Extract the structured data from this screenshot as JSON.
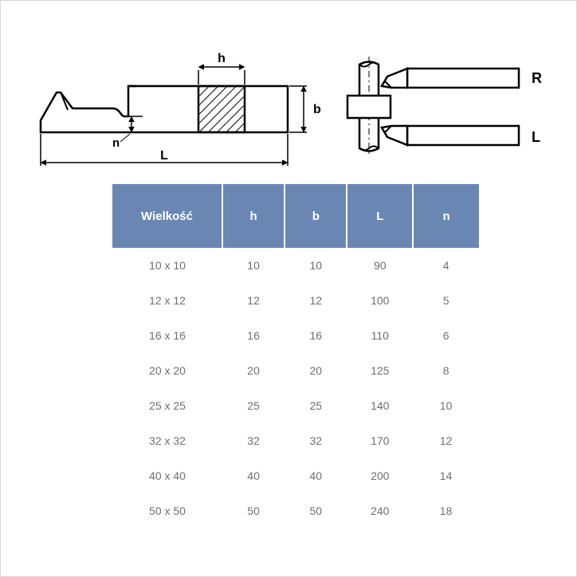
{
  "diagram": {
    "labels": {
      "h": "h",
      "b": "b",
      "L": "L",
      "n": "n",
      "R": "R",
      "Lside": "L"
    },
    "stroke": "#000000",
    "stroke_width": 2,
    "hatch_color": "#000000",
    "font_family": "Arial",
    "dim_fontsize": 14
  },
  "table": {
    "header_bg": "#6a87b4",
    "header_fg": "#ffffff",
    "cell_fg": "#6f6f6f",
    "columns": [
      {
        "key": "size",
        "label": "Wielkość",
        "width": "30%"
      },
      {
        "key": "h",
        "label": "h",
        "width": "17%"
      },
      {
        "key": "b",
        "label": "b",
        "width": "17%"
      },
      {
        "key": "L",
        "label": "L",
        "width": "18%"
      },
      {
        "key": "n",
        "label": "n",
        "width": "18%"
      }
    ],
    "rows": [
      {
        "size": "10 x 10",
        "h": "10",
        "b": "10",
        "L": "90",
        "n": "4"
      },
      {
        "size": "12 x 12",
        "h": "12",
        "b": "12",
        "L": "100",
        "n": "5"
      },
      {
        "size": "16 x 16",
        "h": "16",
        "b": "16",
        "L": "110",
        "n": "6"
      },
      {
        "size": "20 x 20",
        "h": "20",
        "b": "20",
        "L": "125",
        "n": "8"
      },
      {
        "size": "25 x 25",
        "h": "25",
        "b": "25",
        "L": "140",
        "n": "10"
      },
      {
        "size": "32 x 32",
        "h": "32",
        "b": "32",
        "L": "170",
        "n": "12"
      },
      {
        "size": "40 x 40",
        "h": "40",
        "b": "40",
        "L": "200",
        "n": "14"
      },
      {
        "size": "50 x 50",
        "h": "50",
        "b": "50",
        "L": "240",
        "n": "18"
      }
    ]
  }
}
